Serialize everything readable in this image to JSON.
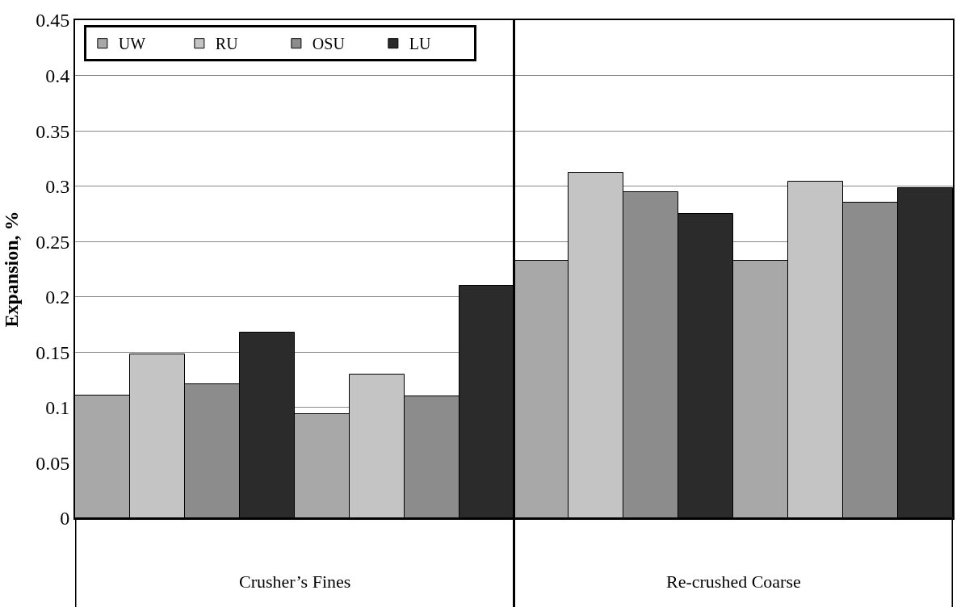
{
  "chart_data": {
    "type": "bar",
    "ylabel": "Expansion, %",
    "categories": [
      null,
      null,
      null,
      null
    ],
    "series": [
      {
        "name": "UW",
        "color": "#a8a8a8",
        "values": [
          0.111,
          0.094,
          0.233,
          0.233
        ]
      },
      {
        "name": "RU",
        "color": "#c4c4c4",
        "values": [
          0.148,
          0.13,
          0.312,
          0.304
        ]
      },
      {
        "name": "OSU",
        "color": "#8c8c8c",
        "values": [
          0.121,
          0.11,
          0.295,
          0.285
        ]
      },
      {
        "name": "LU",
        "color": "#2b2b2b",
        "values": [
          0.168,
          0.21,
          0.275,
          0.298
        ]
      }
    ],
    "ylim": [
      0,
      0.45
    ],
    "yticks": [
      0,
      0.05,
      0.1,
      0.15,
      0.2,
      0.25,
      0.3,
      0.35,
      0.4,
      0.45
    ],
    "grid": "y",
    "legend": "top left",
    "annotations": [
      "Crusher’s Fines",
      "Re-crushed Coarse"
    ]
  }
}
